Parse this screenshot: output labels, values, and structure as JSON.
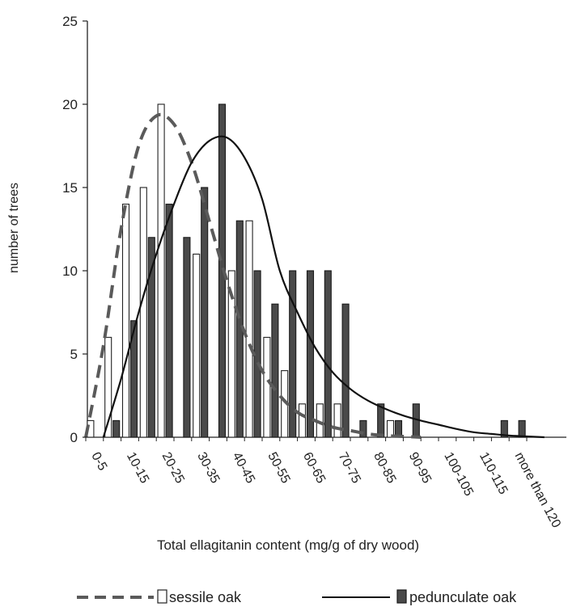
{
  "chart_data": {
    "type": "bar",
    "title": "",
    "xlabel": "Total ellagitanin content (mg/g of dry wood)",
    "ylabel": "number of trees",
    "ylim": [
      0,
      25
    ],
    "yticks": [
      "0",
      "5",
      "10",
      "15",
      "20",
      "25"
    ],
    "grid": false,
    "legend_position": "bottom",
    "categories": [
      "0-5",
      "5-10",
      "10-15",
      "15-20",
      "20-25",
      "25-30",
      "30-35",
      "35-40",
      "40-45",
      "45-50",
      "50-55",
      "55-60",
      "60-65",
      "65-70",
      "70-75",
      "75-80",
      "80-85",
      "85-90",
      "90-95",
      "95-100",
      "100-105",
      "105-110",
      "110-115",
      "115-120",
      "more than 120"
    ],
    "xtick_labels": [
      "0-5",
      "10-15",
      "20-25",
      "30-35",
      "40-45",
      "50-55",
      "60-65",
      "70-75",
      "80-85",
      "90-95",
      "100-105",
      "110-115",
      "more than 120"
    ],
    "series": [
      {
        "name": "sessile oak",
        "kind": "bar",
        "fill": "#ffffff",
        "stroke": "#222222",
        "values": [
          1,
          6,
          14,
          15,
          20,
          0,
          11,
          0,
          10,
          13,
          6,
          4,
          2,
          2,
          2,
          0,
          0,
          1,
          0,
          0,
          0,
          0,
          0,
          0,
          0
        ]
      },
      {
        "name": "pedunculate oak",
        "kind": "bar",
        "fill": "#4a4a4a",
        "stroke": "#1a1a1a",
        "values": [
          0,
          1,
          7,
          12,
          14,
          12,
          15,
          20,
          13,
          10,
          8,
          10,
          10,
          10,
          8,
          1,
          2,
          1,
          2,
          0,
          0,
          0,
          0,
          1,
          1
        ]
      },
      {
        "name": "sessile oak",
        "kind": "fit",
        "style": "dashed",
        "color": "#5a5a5a",
        "x": [
          0,
          1,
          2,
          3,
          4,
          5,
          6,
          7,
          8,
          9,
          10,
          11,
          12,
          13,
          14,
          15,
          16,
          17,
          18,
          19
        ],
        "y": [
          0,
          5.5,
          12.5,
          17.5,
          19.3,
          18.8,
          16.5,
          13.0,
          9.4,
          6.3,
          4.0,
          2.5,
          1.5,
          1.0,
          0.6,
          0.4,
          0.2,
          0.1,
          0.05,
          0
        ]
      },
      {
        "name": "pedunculate oak",
        "kind": "fit",
        "style": "solid",
        "color": "#111111",
        "x": [
          1,
          2,
          3,
          4,
          5,
          6,
          7,
          8,
          9,
          10,
          11,
          12,
          13,
          14,
          15,
          16,
          17,
          18,
          19,
          20,
          21,
          22,
          23,
          24,
          25,
          26
        ],
        "y": [
          0,
          3.5,
          7.5,
          11.0,
          14.0,
          16.5,
          17.8,
          18.0,
          16.8,
          14.3,
          10.0,
          7.5,
          5.4,
          3.9,
          2.9,
          2.2,
          1.7,
          1.3,
          1.0,
          0.75,
          0.5,
          0.3,
          0.2,
          0.1,
          0.05,
          0
        ]
      }
    ],
    "legend": [
      {
        "label": "sessile oak",
        "line": "dashed",
        "swatch": "#ffffff"
      },
      {
        "label": "pedunculate oak",
        "line": "solid",
        "swatch": "#4a4a4a"
      }
    ]
  }
}
